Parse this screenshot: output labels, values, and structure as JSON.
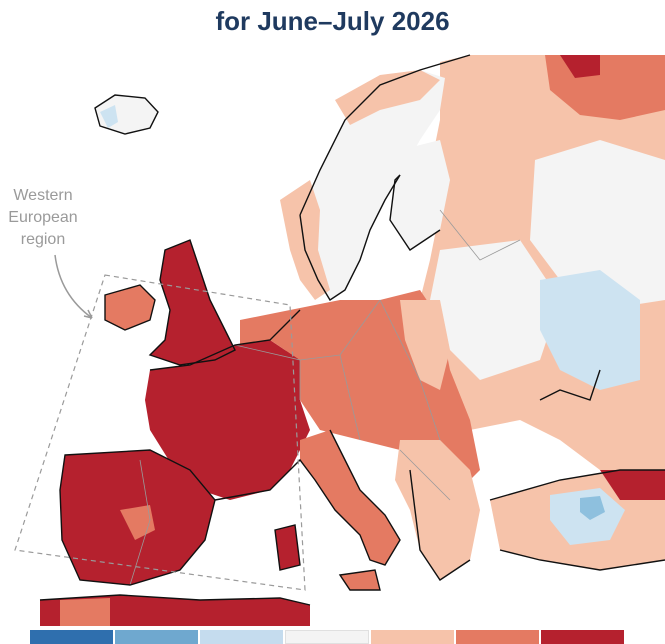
{
  "title": {
    "line_partial": "",
    "line_main": "for June–July 2026"
  },
  "annotation": {
    "lines": [
      "Western",
      "European",
      "region"
    ]
  },
  "colors": {
    "ocean": "#ffffff",
    "neutral": "#f4f4f4",
    "warm_1": "#f6c3aa",
    "warm_2": "#e47a62",
    "warm_3": "#b5212e",
    "cool_1": "#cde3f1",
    "cool_2": "#8ec0de",
    "cool_3": "#3f86bd",
    "coast": "#111111",
    "border": "#9a9a9a",
    "region_box": "#9a9a9a"
  },
  "legend": {
    "swatches": [
      "#2f6fae",
      "#6fa8cf",
      "#c5dcee",
      "#f4f4f4",
      "#f6c3aa",
      "#e47a62",
      "#b5212e"
    ]
  }
}
